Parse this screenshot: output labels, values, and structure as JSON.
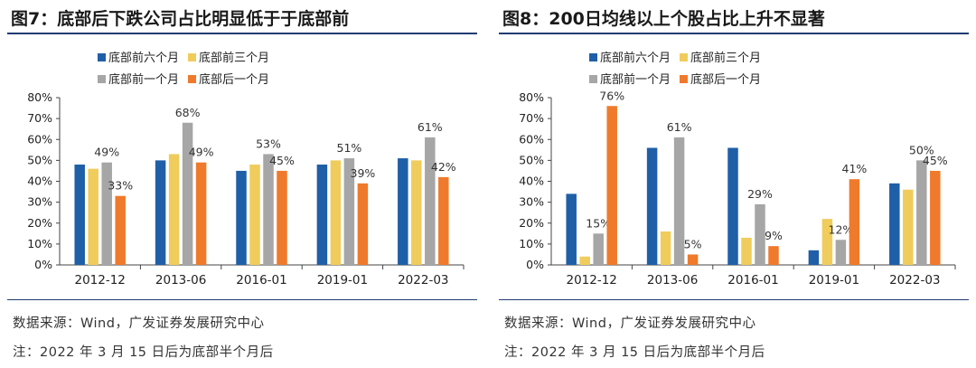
{
  "charts": [
    {
      "panel_title": "图7：底部后下跌公司占比明显低于于底部前",
      "source": "数据来源：Wind，广发证券发展研究中心",
      "note": "注：2022 年 3 月 15 日后为底部半个月后"
    },
    {
      "panel_title": "图8：200日均线以上个股占比上升不显著",
      "source": "数据来源：Wind，广发证券发展研究中心",
      "note": "注：2022 年 3 月 15 日后为底部半个月后"
    }
  ],
  "chart_data": [
    {
      "type": "bar",
      "title": "底部后下跌公司占比明显低于于底部前",
      "categories": [
        "2012-12",
        "2013-06",
        "2016-01",
        "2019-01",
        "2022-03"
      ],
      "ylim": [
        0,
        80
      ],
      "yticks": [
        "0%",
        "10%",
        "20%",
        "30%",
        "40%",
        "50%",
        "60%",
        "70%",
        "80%"
      ],
      "grid": false,
      "legend_position": "top",
      "series": [
        {
          "name": "底部前六个月",
          "color": "#1f5fa8",
          "values": [
            48,
            50,
            45,
            48,
            51
          ]
        },
        {
          "name": "底部前三个月",
          "color": "#f0cc5c",
          "values": [
            46,
            53,
            48,
            50,
            50
          ]
        },
        {
          "name": "底部前一个月",
          "color": "#a6a6a6",
          "values": [
            49,
            68,
            53,
            51,
            61
          ]
        },
        {
          "name": "底部后一个月",
          "color": "#ef7a2c",
          "values": [
            33,
            49,
            45,
            39,
            42
          ]
        }
      ],
      "labeled_series": [
        "底部前一个月",
        "底部后一个月"
      ]
    },
    {
      "type": "bar",
      "title": "200日均线以上个股占比上升不显著",
      "categories": [
        "2012-12",
        "2013-06",
        "2016-01",
        "2019-01",
        "2022-03"
      ],
      "ylim": [
        0,
        80
      ],
      "yticks": [
        "0%",
        "10%",
        "20%",
        "30%",
        "40%",
        "50%",
        "60%",
        "70%",
        "80%"
      ],
      "grid": false,
      "legend_position": "top",
      "series": [
        {
          "name": "底部前六个月",
          "color": "#1f5fa8",
          "values": [
            34,
            56,
            56,
            7,
            39
          ]
        },
        {
          "name": "底部前三个月",
          "color": "#f0cc5c",
          "values": [
            4,
            16,
            13,
            22,
            36
          ]
        },
        {
          "name": "底部前一个月",
          "color": "#a6a6a6",
          "values": [
            15,
            61,
            29,
            12,
            50
          ]
        },
        {
          "name": "底部后一个月",
          "color": "#ef7a2c",
          "values": [
            76,
            5,
            9,
            41,
            45
          ]
        }
      ],
      "labeled_series": [
        "底部前一个月",
        "底部后一个月"
      ]
    }
  ]
}
